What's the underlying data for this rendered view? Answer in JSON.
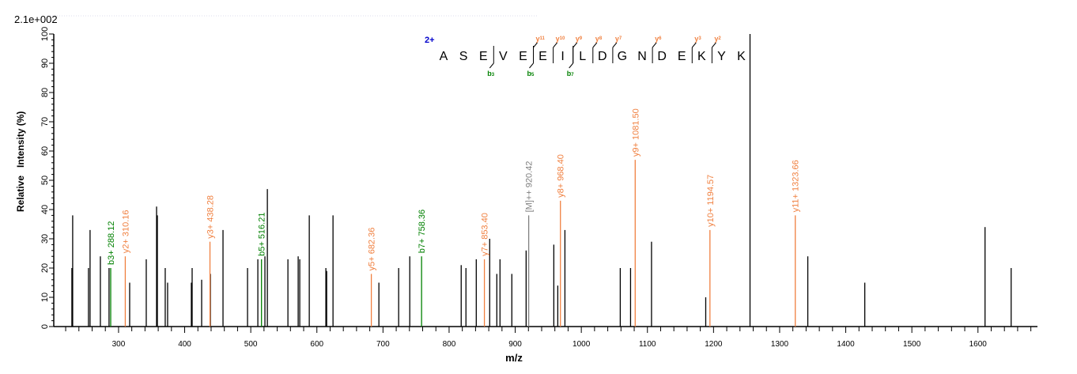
{
  "chart_data": {
    "type": "bar",
    "subtype": "mass-spectrum",
    "scale_label": "2.1e+002",
    "xlabel": "m/z",
    "ylabel": "Relative   Intensity (%)",
    "xlim": [
      202,
      1690
    ],
    "ylim": [
      0,
      100
    ],
    "x_ticks": [
      300,
      400,
      500,
      600,
      700,
      800,
      900,
      1000,
      1100,
      1200,
      1300,
      1400,
      1500,
      1600
    ],
    "y_ticks": [
      0,
      10,
      20,
      30,
      40,
      50,
      60,
      70,
      80,
      90,
      100
    ],
    "grid": false,
    "colors": {
      "b_ion": "#008000",
      "y_ion": "#f08040",
      "precursor": "#808080",
      "unassigned": "#000000",
      "charge": "#0000cc"
    },
    "unassigned_peaks": [
      [
        230.6,
        38
      ],
      [
        229.4,
        20
      ],
      [
        254.5,
        20
      ],
      [
        256.9,
        33
      ],
      [
        272.5,
        24
      ],
      [
        285.6,
        20
      ],
      [
        316.8,
        15
      ],
      [
        341.9,
        23
      ],
      [
        357.5,
        41
      ],
      [
        358.7,
        38
      ],
      [
        370.6,
        20
      ],
      [
        374.2,
        15
      ],
      [
        410.1,
        15
      ],
      [
        411.3,
        20
      ],
      [
        425.7,
        16
      ],
      [
        438.9,
        18
      ],
      [
        458.0,
        33
      ],
      [
        495.1,
        20
      ],
      [
        510.7,
        23
      ],
      [
        521.4,
        24
      ],
      [
        525.1,
        47
      ],
      [
        556.2,
        23
      ],
      [
        571.7,
        24
      ],
      [
        574.1,
        23
      ],
      [
        588.5,
        38
      ],
      [
        613.6,
        20
      ],
      [
        614.8,
        19
      ],
      [
        624.4,
        38
      ],
      [
        693.8,
        15
      ],
      [
        723.7,
        20
      ],
      [
        740.5,
        24
      ],
      [
        818.3,
        21
      ],
      [
        825.5,
        20
      ],
      [
        841.1,
        23
      ],
      [
        861.4,
        30
      ],
      [
        872.2,
        18
      ],
      [
        877.0,
        23
      ],
      [
        894.9,
        18
      ],
      [
        916.5,
        26
      ],
      [
        958.4,
        28
      ],
      [
        964.4,
        14
      ],
      [
        975.2,
        33
      ],
      [
        1058.9,
        20
      ],
      [
        1074.5,
        20
      ],
      [
        1106.2,
        29
      ],
      [
        1188.2,
        10
      ],
      [
        1255.2,
        100
      ],
      [
        1342.6,
        24
      ],
      [
        1428.8,
        15
      ],
      [
        1610.7,
        34
      ],
      [
        1650.2,
        20
      ]
    ],
    "labeled_peaks": [
      {
        "label": "b3+ 288.12",
        "mz": 288.12,
        "intensity": 20,
        "type": "b_ion"
      },
      {
        "label": "y2+ 310.16",
        "mz": 310.16,
        "intensity": 24,
        "type": "y_ion"
      },
      {
        "label": "y3+ 438.28",
        "mz": 438.28,
        "intensity": 29,
        "type": "y_ion"
      },
      {
        "label": "b5+ 516.21",
        "mz": 516.21,
        "intensity": 23,
        "type": "b_ion"
      },
      {
        "label": "y5+ 682.36",
        "mz": 682.36,
        "intensity": 18,
        "type": "y_ion"
      },
      {
        "label": "b7+ 758.36",
        "mz": 758.36,
        "intensity": 24,
        "type": "b_ion"
      },
      {
        "label": "y7+ 853.40",
        "mz": 853.4,
        "intensity": 23,
        "type": "y_ion"
      },
      {
        "label": "[M]++ 920.42",
        "mz": 920.42,
        "intensity": 38,
        "type": "precursor"
      },
      {
        "label": "y8+ 968.40",
        "mz": 968.4,
        "intensity": 43,
        "type": "y_ion"
      },
      {
        "label": "y9+ 1081.50",
        "mz": 1081.5,
        "intensity": 57,
        "type": "y_ion"
      },
      {
        "label": "y10+ 1194.57",
        "mz": 1194.57,
        "intensity": 33,
        "type": "y_ion"
      },
      {
        "label": "y11+ 1323.66",
        "mz": 1323.66,
        "intensity": 38,
        "type": "y_ion"
      }
    ],
    "peptide": {
      "charge": "2+",
      "sequence": [
        "A",
        "S",
        "E",
        "V",
        "E",
        "E",
        "I",
        "L",
        "D",
        "G",
        "N",
        "D",
        "E",
        "K",
        "Y",
        "K"
      ],
      "y_marks": [
        {
          "before": 5,
          "ion": "y",
          "num": "11"
        },
        {
          "before": 6,
          "ion": "y",
          "num": "10"
        },
        {
          "before": 7,
          "ion": "y",
          "num": "9"
        },
        {
          "before": 8,
          "ion": "y",
          "num": "8"
        },
        {
          "before": 9,
          "ion": "y",
          "num": "7"
        },
        {
          "before": 11,
          "ion": "y",
          "num": "6"
        },
        {
          "before": 13,
          "ion": "y",
          "num": "3"
        },
        {
          "before": 14,
          "ion": "y",
          "num": "2"
        }
      ],
      "b_marks": [
        {
          "before": 3,
          "ion": "b",
          "num": "3"
        },
        {
          "before": 5,
          "ion": "b",
          "num": "5"
        },
        {
          "before": 7,
          "ion": "b",
          "num": "7"
        }
      ]
    }
  }
}
